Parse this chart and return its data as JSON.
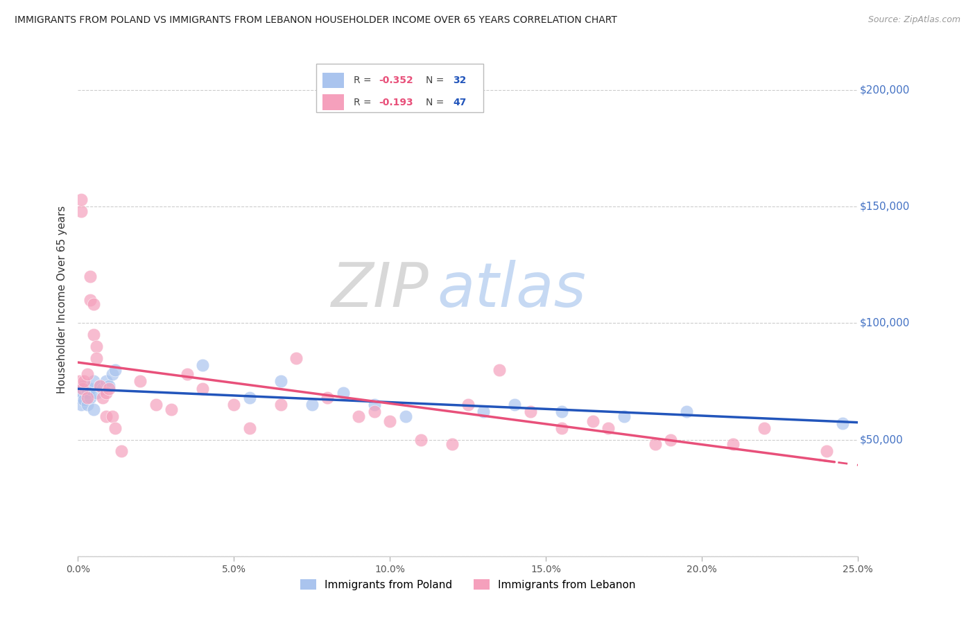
{
  "title": "IMMIGRANTS FROM POLAND VS IMMIGRANTS FROM LEBANON HOUSEHOLDER INCOME OVER 65 YEARS CORRELATION CHART",
  "source": "Source: ZipAtlas.com",
  "ylabel": "Householder Income Over 65 years",
  "y_ticks": [
    0,
    50000,
    100000,
    150000,
    200000
  ],
  "y_tick_labels": [
    "",
    "$50,000",
    "$100,000",
    "$150,000",
    "$200,000"
  ],
  "x_min": 0.0,
  "x_max": 0.25,
  "y_min": 0,
  "y_max": 220000,
  "poland_R": -0.352,
  "poland_N": 32,
  "lebanon_R": -0.193,
  "lebanon_N": 47,
  "poland_color": "#aac4ee",
  "lebanon_color": "#f5a0bc",
  "poland_line_color": "#2255bb",
  "lebanon_line_color": "#e8507a",
  "watermark_zip": "ZIP",
  "watermark_atlas": "atlas",
  "poland_x": [
    0.0005,
    0.001,
    0.001,
    0.0015,
    0.002,
    0.002,
    0.003,
    0.003,
    0.004,
    0.004,
    0.005,
    0.005,
    0.006,
    0.007,
    0.008,
    0.009,
    0.01,
    0.011,
    0.012,
    0.04,
    0.055,
    0.065,
    0.075,
    0.085,
    0.095,
    0.105,
    0.13,
    0.14,
    0.155,
    0.175,
    0.195,
    0.245
  ],
  "poland_y": [
    68000,
    72000,
    65000,
    70000,
    67000,
    73000,
    65000,
    70000,
    68000,
    72000,
    75000,
    63000,
    70000,
    73000,
    72000,
    75000,
    73000,
    78000,
    80000,
    82000,
    68000,
    75000,
    65000,
    70000,
    65000,
    60000,
    62000,
    65000,
    62000,
    60000,
    62000,
    57000
  ],
  "lebanon_x": [
    0.0005,
    0.001,
    0.001,
    0.0015,
    0.002,
    0.003,
    0.003,
    0.004,
    0.004,
    0.005,
    0.005,
    0.006,
    0.006,
    0.007,
    0.008,
    0.009,
    0.009,
    0.01,
    0.011,
    0.012,
    0.014,
    0.02,
    0.025,
    0.03,
    0.035,
    0.04,
    0.05,
    0.055,
    0.065,
    0.07,
    0.08,
    0.09,
    0.095,
    0.1,
    0.11,
    0.12,
    0.125,
    0.135,
    0.145,
    0.155,
    0.165,
    0.17,
    0.185,
    0.19,
    0.21,
    0.22,
    0.24
  ],
  "lebanon_y": [
    75000,
    148000,
    153000,
    72000,
    75000,
    78000,
    68000,
    120000,
    110000,
    108000,
    95000,
    90000,
    85000,
    73000,
    68000,
    70000,
    60000,
    72000,
    60000,
    55000,
    45000,
    75000,
    65000,
    63000,
    78000,
    72000,
    65000,
    55000,
    65000,
    85000,
    68000,
    60000,
    62000,
    58000,
    50000,
    48000,
    65000,
    80000,
    62000,
    55000,
    58000,
    55000,
    48000,
    50000,
    48000,
    55000,
    45000
  ]
}
